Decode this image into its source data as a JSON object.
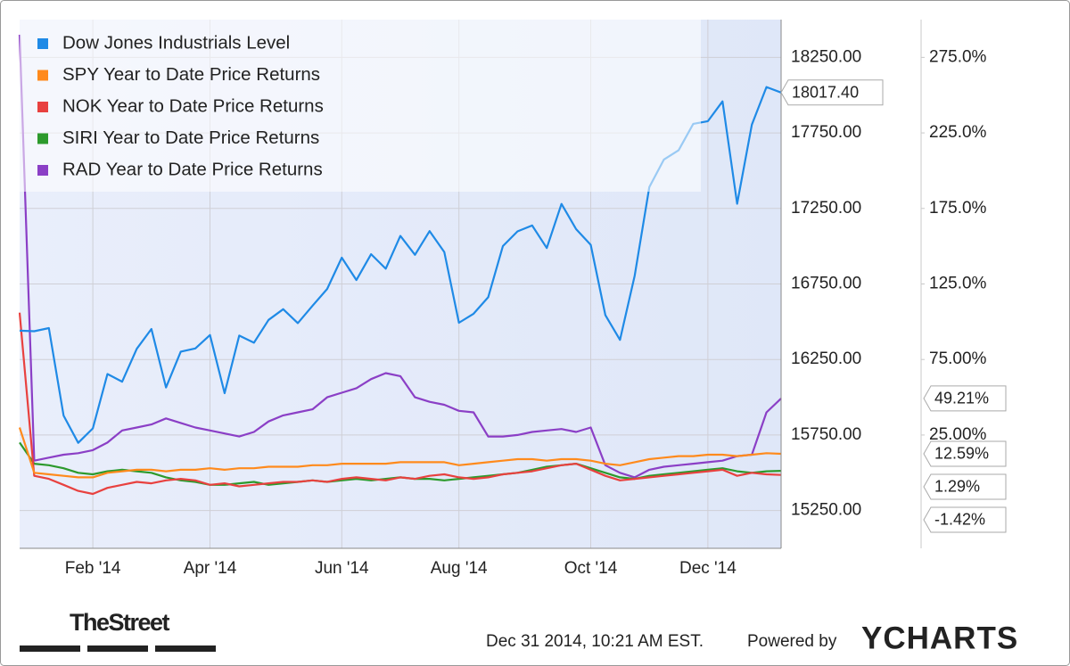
{
  "chart_data": {
    "type": "line",
    "categories": [
      null,
      null,
      null,
      null,
      null,
      "Feb '14",
      null,
      null,
      null,
      null,
      null,
      null,
      null,
      "Apr '14",
      null,
      null,
      null,
      null,
      null,
      null,
      null,
      null,
      "Jun '14",
      null,
      null,
      null,
      null,
      null,
      null,
      null,
      "Aug '14",
      null,
      null,
      null,
      null,
      null,
      null,
      null,
      null,
      "Oct '14",
      null,
      null,
      null,
      null,
      null,
      null,
      null,
      "Dec '14",
      null,
      null,
      null,
      null,
      null
    ],
    "series": [
      {
        "name": "Dow Jones Industrials Level",
        "color": "#1f8ae6",
        "axis": "y",
        "values": [
          16441,
          16437,
          16458,
          15879,
          15698,
          15794,
          16154,
          16103,
          16321,
          16452,
          16065,
          16302,
          16323,
          16412,
          16027,
          16408,
          16361,
          16512,
          16583,
          16491,
          16606,
          16717,
          16924,
          16776,
          16947,
          16851,
          17068,
          16943,
          17100,
          16961,
          16493,
          16553,
          16662,
          17001,
          17098,
          17137,
          16988,
          17280,
          17113,
          17009,
          16544,
          16380,
          16805,
          17391,
          17574,
          17635,
          17810,
          17828,
          17959,
          17281,
          17805,
          18054,
          18017.4
        ],
        "value_labels": [
          null,
          null,
          null,
          null,
          null,
          null,
          null,
          null,
          null,
          null,
          null,
          null,
          null,
          null,
          null,
          null,
          null,
          null,
          null,
          null,
          null,
          null,
          null,
          null,
          null,
          null,
          null,
          null,
          null,
          null,
          null,
          null,
          null,
          null,
          null,
          null,
          null,
          null,
          null,
          null,
          null,
          null,
          null,
          null,
          null,
          null,
          null,
          null,
          null,
          null,
          null,
          null,
          "18017.40"
        ]
      },
      {
        "name": "SPY Year to Date Price Returns",
        "color": "#ff8a1c",
        "axis": "y2",
        "values": [
          30,
          0,
          -1,
          -2,
          -3,
          -3,
          0,
          1,
          2,
          2,
          1,
          2,
          2,
          3,
          2,
          3,
          3,
          4,
          4,
          4,
          5,
          5,
          6,
          6,
          6,
          6,
          7,
          7,
          7,
          7,
          5,
          6,
          7,
          8,
          9,
          9,
          8,
          9,
          9,
          8,
          6,
          5,
          7,
          9,
          10,
          11,
          11,
          12,
          12,
          11,
          12,
          13,
          12.59
        ],
        "value_labels": [
          null,
          null,
          null,
          null,
          null,
          null,
          null,
          null,
          null,
          null,
          null,
          null,
          null,
          null,
          null,
          null,
          null,
          null,
          null,
          null,
          null,
          null,
          null,
          null,
          null,
          null,
          null,
          null,
          null,
          null,
          null,
          null,
          null,
          null,
          null,
          null,
          null,
          null,
          null,
          null,
          null,
          null,
          null,
          null,
          null,
          null,
          null,
          null,
          null,
          null,
          null,
          null,
          "12.59%"
        ]
      },
      {
        "name": "NOK Year to Date Price Returns",
        "color": "#e8413f",
        "axis": "y2",
        "values": [
          106,
          -2,
          -4,
          -8,
          -12,
          -14,
          -10,
          -8,
          -6,
          -7,
          -5,
          -4,
          -5,
          -8,
          -7,
          -9,
          -8,
          -7,
          -6,
          -6,
          -5,
          -6,
          -4,
          -3,
          -4,
          -5,
          -3,
          -4,
          -2,
          -1,
          -3,
          -4,
          -3,
          -1,
          0,
          1,
          3,
          5,
          6,
          2,
          -2,
          -5,
          -4,
          -3,
          -2,
          -1,
          0,
          1,
          2,
          -2,
          0,
          -1,
          -1.42
        ],
        "value_labels": [
          null,
          null,
          null,
          null,
          null,
          null,
          null,
          null,
          null,
          null,
          null,
          null,
          null,
          null,
          null,
          null,
          null,
          null,
          null,
          null,
          null,
          null,
          null,
          null,
          null,
          null,
          null,
          null,
          null,
          null,
          null,
          null,
          null,
          null,
          null,
          null,
          null,
          null,
          null,
          null,
          null,
          null,
          null,
          null,
          null,
          null,
          null,
          null,
          null,
          null,
          null,
          null,
          "-1.42%"
        ]
      },
      {
        "name": "SIRI Year to Date Price Returns",
        "color": "#2c9a2c",
        "axis": "y2",
        "values": [
          20,
          6,
          5,
          3,
          0,
          -1,
          1,
          2,
          1,
          0,
          -3,
          -5,
          -6,
          -8,
          -8,
          -7,
          -6,
          -8,
          -7,
          -6,
          -5,
          -6,
          -5,
          -4,
          -5,
          -4,
          -3,
          -4,
          -4,
          -5,
          -4,
          -3,
          -2,
          -1,
          0,
          2,
          4,
          5,
          6,
          3,
          0,
          -3,
          -4,
          -2,
          -1,
          0,
          1,
          2,
          3,
          1,
          0,
          1,
          1.29
        ],
        "value_labels": [
          null,
          null,
          null,
          null,
          null,
          null,
          null,
          null,
          null,
          null,
          null,
          null,
          null,
          null,
          null,
          null,
          null,
          null,
          null,
          null,
          null,
          null,
          null,
          null,
          null,
          null,
          null,
          null,
          null,
          null,
          null,
          null,
          null,
          null,
          null,
          null,
          null,
          null,
          null,
          null,
          null,
          null,
          null,
          null,
          null,
          null,
          null,
          null,
          null,
          null,
          null,
          null,
          "1.29%"
        ]
      },
      {
        "name": "RAD Year to Date Price Returns",
        "color": "#8b3fc6",
        "axis": "y2",
        "values": [
          290,
          8,
          10,
          12,
          13,
          15,
          20,
          28,
          30,
          32,
          36,
          33,
          30,
          28,
          26,
          24,
          27,
          34,
          38,
          40,
          42,
          50,
          53,
          56,
          62,
          66,
          64,
          50,
          47,
          45,
          41,
          40,
          24,
          24,
          25,
          27,
          28,
          29,
          27,
          30,
          5,
          0,
          -3,
          2,
          4,
          5,
          6,
          7,
          8,
          11,
          12,
          40,
          49.21
        ],
        "value_labels": [
          null,
          null,
          null,
          null,
          null,
          null,
          null,
          null,
          null,
          null,
          null,
          null,
          null,
          null,
          null,
          null,
          null,
          null,
          null,
          null,
          null,
          null,
          null,
          null,
          null,
          null,
          null,
          null,
          null,
          null,
          null,
          null,
          null,
          null,
          null,
          null,
          null,
          null,
          null,
          null,
          null,
          null,
          null,
          null,
          null,
          null,
          null,
          null,
          null,
          null,
          null,
          null,
          "49.21%"
        ]
      }
    ],
    "ylim": [
      15000,
      18500
    ],
    "yticks": [
      {
        "value": 15250,
        "label": "15250.00"
      },
      {
        "value": 15750,
        "label": "15750.00"
      },
      {
        "value": 16250,
        "label": "16250.00"
      },
      {
        "value": 16750,
        "label": "16750.00"
      },
      {
        "value": 17250,
        "label": "17250.00"
      },
      {
        "value": 17750,
        "label": "17750.00"
      },
      {
        "value": 18250,
        "label": "18250.00"
      }
    ],
    "y2lim": [
      -50,
      300
    ],
    "y2ticks": [
      {
        "value": 25,
        "label": "25.00%"
      },
      {
        "value": 75,
        "label": "75.00%"
      },
      {
        "value": 125,
        "label": "125.0%"
      },
      {
        "value": 175,
        "label": "175.0%"
      },
      {
        "value": 225,
        "label": "225.0%"
      },
      {
        "value": 275,
        "label": "275.0%"
      }
    ],
    "grid": true,
    "legend": "top-left",
    "source": "TheStreet",
    "timestamp": "Dec 31 2014, 10:21 AM EST.",
    "powered_by": "Powered by",
    "brand": "YCHARTS"
  }
}
